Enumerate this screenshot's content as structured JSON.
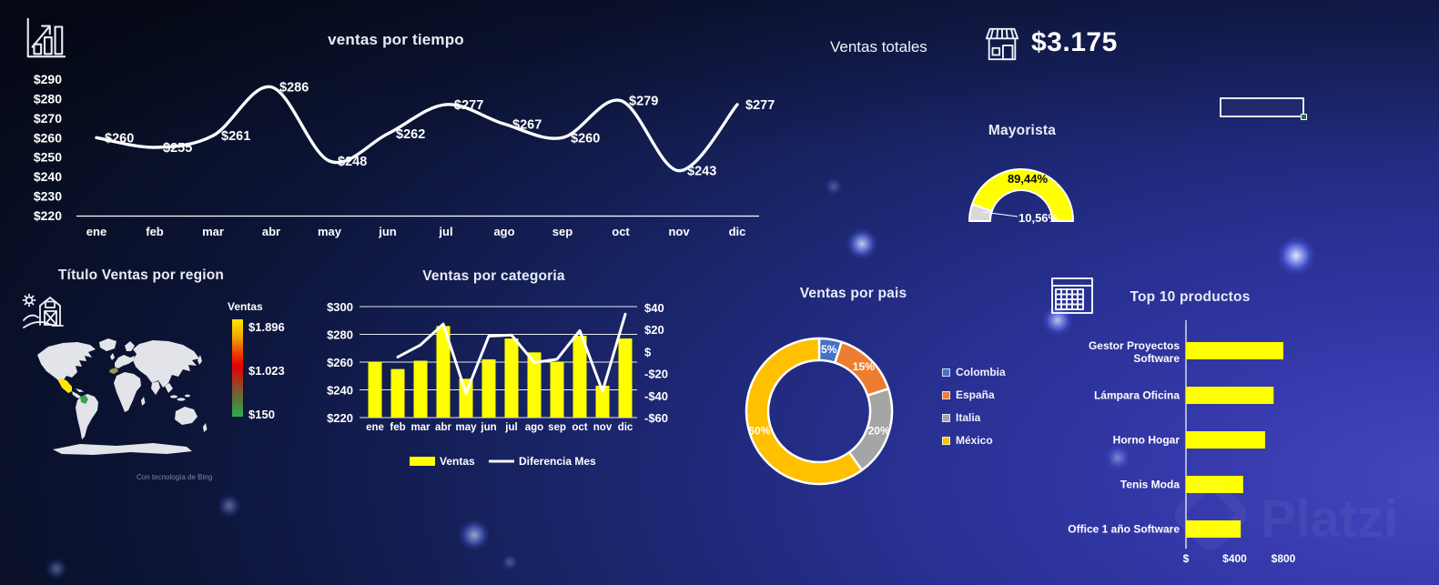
{
  "watermark": "Platzi",
  "kpi": {
    "label": "Ventas totales",
    "value": "$3.175",
    "icon": "store-icon"
  },
  "selection": {
    "present": true,
    "handle_color": "#1e7145"
  },
  "chart_data": [
    {
      "id": "ventas_por_tiempo",
      "type": "line",
      "title": "ventas por tiempo",
      "categories": [
        "ene",
        "feb",
        "mar",
        "abr",
        "may",
        "jun",
        "jul",
        "ago",
        "sep",
        "oct",
        "nov",
        "dic"
      ],
      "values": [
        260,
        255,
        261,
        286,
        248,
        262,
        277,
        267,
        260,
        279,
        243,
        277
      ],
      "data_labels": [
        "$260",
        "$255",
        "$261",
        "$286",
        "$248",
        "$262",
        "$277",
        "$267",
        "$260",
        "$279",
        "$243",
        "$277"
      ],
      "y_ticks": [
        "$290",
        "$280",
        "$270",
        "$260",
        "$250",
        "$240",
        "$230",
        "$220"
      ],
      "ylim": [
        220,
        290
      ],
      "line_color": "#ffffff",
      "grid": false,
      "legend_position": "none"
    },
    {
      "id": "ventas_por_region",
      "type": "map",
      "title": "Título Ventas por region",
      "legend_title": "Ventas",
      "scale": {
        "max_label": "$1.896",
        "mid_label": "$1.023",
        "min_label": "$150",
        "max": 1896,
        "mid": 1023,
        "min": 150,
        "scale_colors": [
          "#ffe800",
          "#e40000",
          "#2fae4e"
        ]
      },
      "highlights": [
        {
          "region": "México",
          "color": "#ffe600"
        },
        {
          "region": "Colombia",
          "color": "#2fa84f"
        },
        {
          "region": "España",
          "color": "#949a52"
        }
      ],
      "attribution": "Con tecnología de Bing"
    },
    {
      "id": "ventas_por_categoria",
      "type": "bar",
      "title": "Ventas por categoria",
      "categories": [
        "ene",
        "feb",
        "mar",
        "abr",
        "may",
        "jun",
        "jul",
        "ago",
        "sep",
        "oct",
        "nov",
        "dic"
      ],
      "series": [
        {
          "name": "Ventas",
          "type": "bar",
          "color": "#ffff00",
          "values": [
            260,
            255,
            261,
            286,
            248,
            262,
            277,
            267,
            260,
            279,
            243,
            277
          ]
        },
        {
          "name": "Diferencia Mes",
          "type": "line",
          "color": "#ffffff",
          "values": [
            null,
            -5,
            6,
            25,
            -38,
            14,
            15,
            -10,
            -7,
            19,
            -36,
            34
          ]
        }
      ],
      "left_axis": {
        "ticks": [
          "$300",
          "$280",
          "$260",
          "$240",
          "$220"
        ],
        "min": 220,
        "max": 300
      },
      "right_axis": {
        "ticks": [
          "$40",
          "$20",
          "$",
          "-$20",
          "-$40",
          "-$60"
        ],
        "min": -60,
        "max": 40
      },
      "grid": true,
      "legend_position": "bottom"
    },
    {
      "id": "ventas_por_pais",
      "type": "pie",
      "title": "Ventas por pais",
      "slices": [
        {
          "label": "Colombia",
          "pct": 5,
          "color": "#4472c4",
          "data_label": "5%"
        },
        {
          "label": "España",
          "pct": 15,
          "color": "#ed7d31",
          "data_label": "15%"
        },
        {
          "label": "Italia",
          "pct": 20,
          "color": "#a5a5a5",
          "data_label": "20%"
        },
        {
          "label": "México",
          "pct": 60,
          "color": "#ffc000",
          "data_label": "60%"
        }
      ],
      "legend_position": "right"
    },
    {
      "id": "mayorista",
      "type": "gauge",
      "title": "Mayorista",
      "segments": [
        {
          "label": "10,56%",
          "pct": 10.56,
          "color": "#d9d9d9"
        },
        {
          "label": "89,44%",
          "pct": 89.44,
          "color": "#ffff00"
        }
      ]
    },
    {
      "id": "top_10_productos",
      "type": "bar",
      "title": "Top 10 productos",
      "categories": [
        "Gestor Proyectos Software",
        "Lámpara Oficina",
        "Horno Hogar",
        "Tenis Moda",
        "Office 1 año Software"
      ],
      "values": [
        800,
        720,
        650,
        470,
        450
      ],
      "x_ticks": [
        "$",
        "$400",
        "$800"
      ],
      "x_tick_values": [
        0,
        400,
        800
      ],
      "xlim": [
        0,
        850
      ],
      "bar_color": "#ffff00",
      "orientation": "horizontal"
    }
  ]
}
